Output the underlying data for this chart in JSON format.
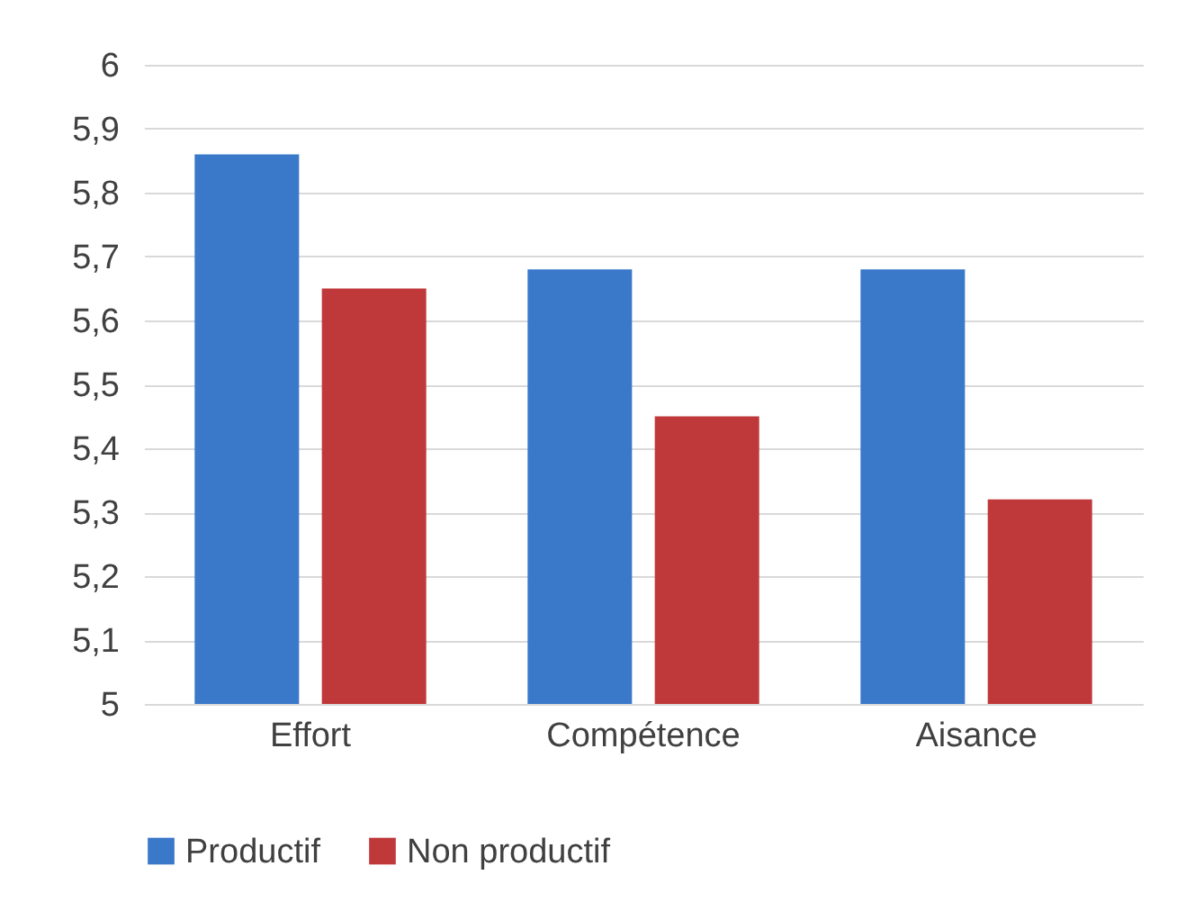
{
  "chart_data": {
    "type": "bar",
    "categories": [
      "Effort",
      "Compétence",
      "Aisance"
    ],
    "series": [
      {
        "name": "Productif",
        "color": "#3a78c9",
        "values": [
          5.86,
          5.68,
          5.68
        ]
      },
      {
        "name": "Non productif",
        "color": "#c0393a",
        "values": [
          5.65,
          5.45,
          5.32
        ]
      }
    ],
    "ylim": [
      5,
      6
    ],
    "yticks": [
      5,
      {
        "value": 5.1,
        "label": "5,1"
      },
      {
        "value": 5.2,
        "label": "5,2"
      },
      {
        "value": 5.3,
        "label": "5,3"
      },
      {
        "value": 5.4,
        "label": "5,4"
      },
      {
        "value": 5.5,
        "label": "5,5"
      },
      {
        "value": 5.6,
        "label": "5,6"
      },
      {
        "value": 5.7,
        "label": "5,7"
      },
      {
        "value": 5.8,
        "label": "5,8"
      },
      {
        "value": 5.9,
        "label": "5,9"
      },
      6
    ],
    "grid": "y",
    "legend": "bottom"
  }
}
